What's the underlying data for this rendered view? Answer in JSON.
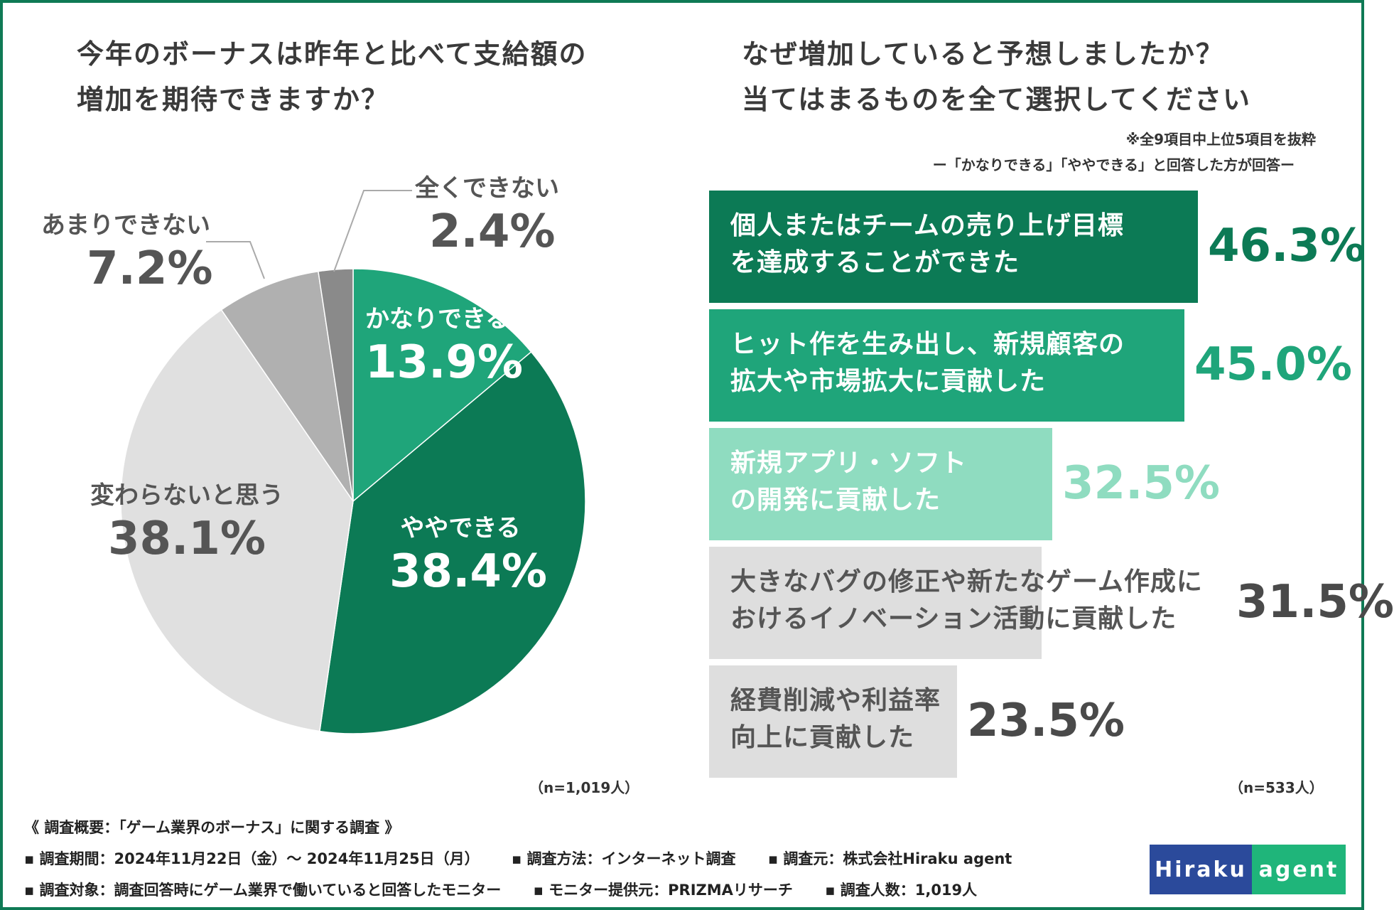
{
  "left_title": [
    "今年のボーナスは昨年と比べて支給額の",
    "増加を期待できますか？"
  ],
  "right_title": [
    "なぜ増加していると予想しましたか？",
    "当てはまるものを全て選択してください"
  ],
  "right_note1": "※全9項目中上位5項目を抜粋",
  "right_note2": "ー「かなりできる」「ややできる」と回答した方が回答ー",
  "left_n": "（n=1,019人）",
  "right_n": "（n=533人）",
  "chart_data": [
    {
      "type": "pie",
      "title": "今年のボーナスは昨年と比べて支給額の増加を期待できますか？",
      "categories": [
        "かなりできる",
        "ややできる",
        "変わらないと思う",
        "あまりできない",
        "全くできない"
      ],
      "values": [
        13.9,
        38.4,
        38.1,
        7.2,
        2.4
      ],
      "labels": [
        "13.9%",
        "38.4%",
        "38.1%",
        "7.2%",
        "2.4%"
      ],
      "colors": [
        "#1fa57a",
        "#0c7a55",
        "#e0e0e0",
        "#b0b0b0",
        "#8a8a8a"
      ],
      "n": "n=1,019人"
    },
    {
      "type": "bar",
      "orientation": "horizontal",
      "title": "なぜ増加していると予想しましたか？当てはまるものを全て選択してください",
      "categories": [
        [
          "個人またはチームの売り上げ目標",
          "を達成することができた"
        ],
        [
          "ヒット作を生み出し、新規顧客の",
          "拡大や市場拡大に貢献した"
        ],
        [
          "新規アプリ・ソフト",
          "の開発に貢献した"
        ],
        [
          "大きなバグの修正や新たなゲーム作成に",
          "おけるイノベーション活動に貢献した"
        ],
        [
          "経費削減や利益率",
          "向上に貢献した"
        ]
      ],
      "values": [
        46.3,
        45.0,
        32.5,
        31.5,
        23.5
      ],
      "labels": [
        "46.3%",
        "45.0%",
        "32.5%",
        "31.5%",
        "23.5%"
      ],
      "colors": [
        "#0c7a55",
        "#1fa57a",
        "#8fdcc0",
        "#dedede",
        "#dedede"
      ],
      "text_colors": [
        "#ffffff",
        "#ffffff",
        "#ffffff",
        "#555555",
        "#555555"
      ],
      "pct_colors": [
        "#0c7a55",
        "#1fa57a",
        "#8fdcc0",
        "#4a4a4a",
        "#4a4a4a"
      ],
      "n": "n=533人"
    }
  ],
  "footer": {
    "heading": "《 調査概要：「ゲーム業界のボーナス」に関する調査 》",
    "row1": [
      "▪ 調査期間：2024年11月22日（金）〜 2024年11月25日（月）",
      "▪ 調査方法：インターネット調査",
      "▪ 調査元：株式会社Hiraku agent"
    ],
    "row2": [
      "▪ 調査対象：調査回答時にゲーム業界で働いていると回答したモニター",
      "▪ モニター提供元：PRIZMAリサーチ",
      "▪ 調査人数：1,019人"
    ]
  },
  "logo": {
    "part1": "Hiraku",
    "part2": "agent"
  }
}
